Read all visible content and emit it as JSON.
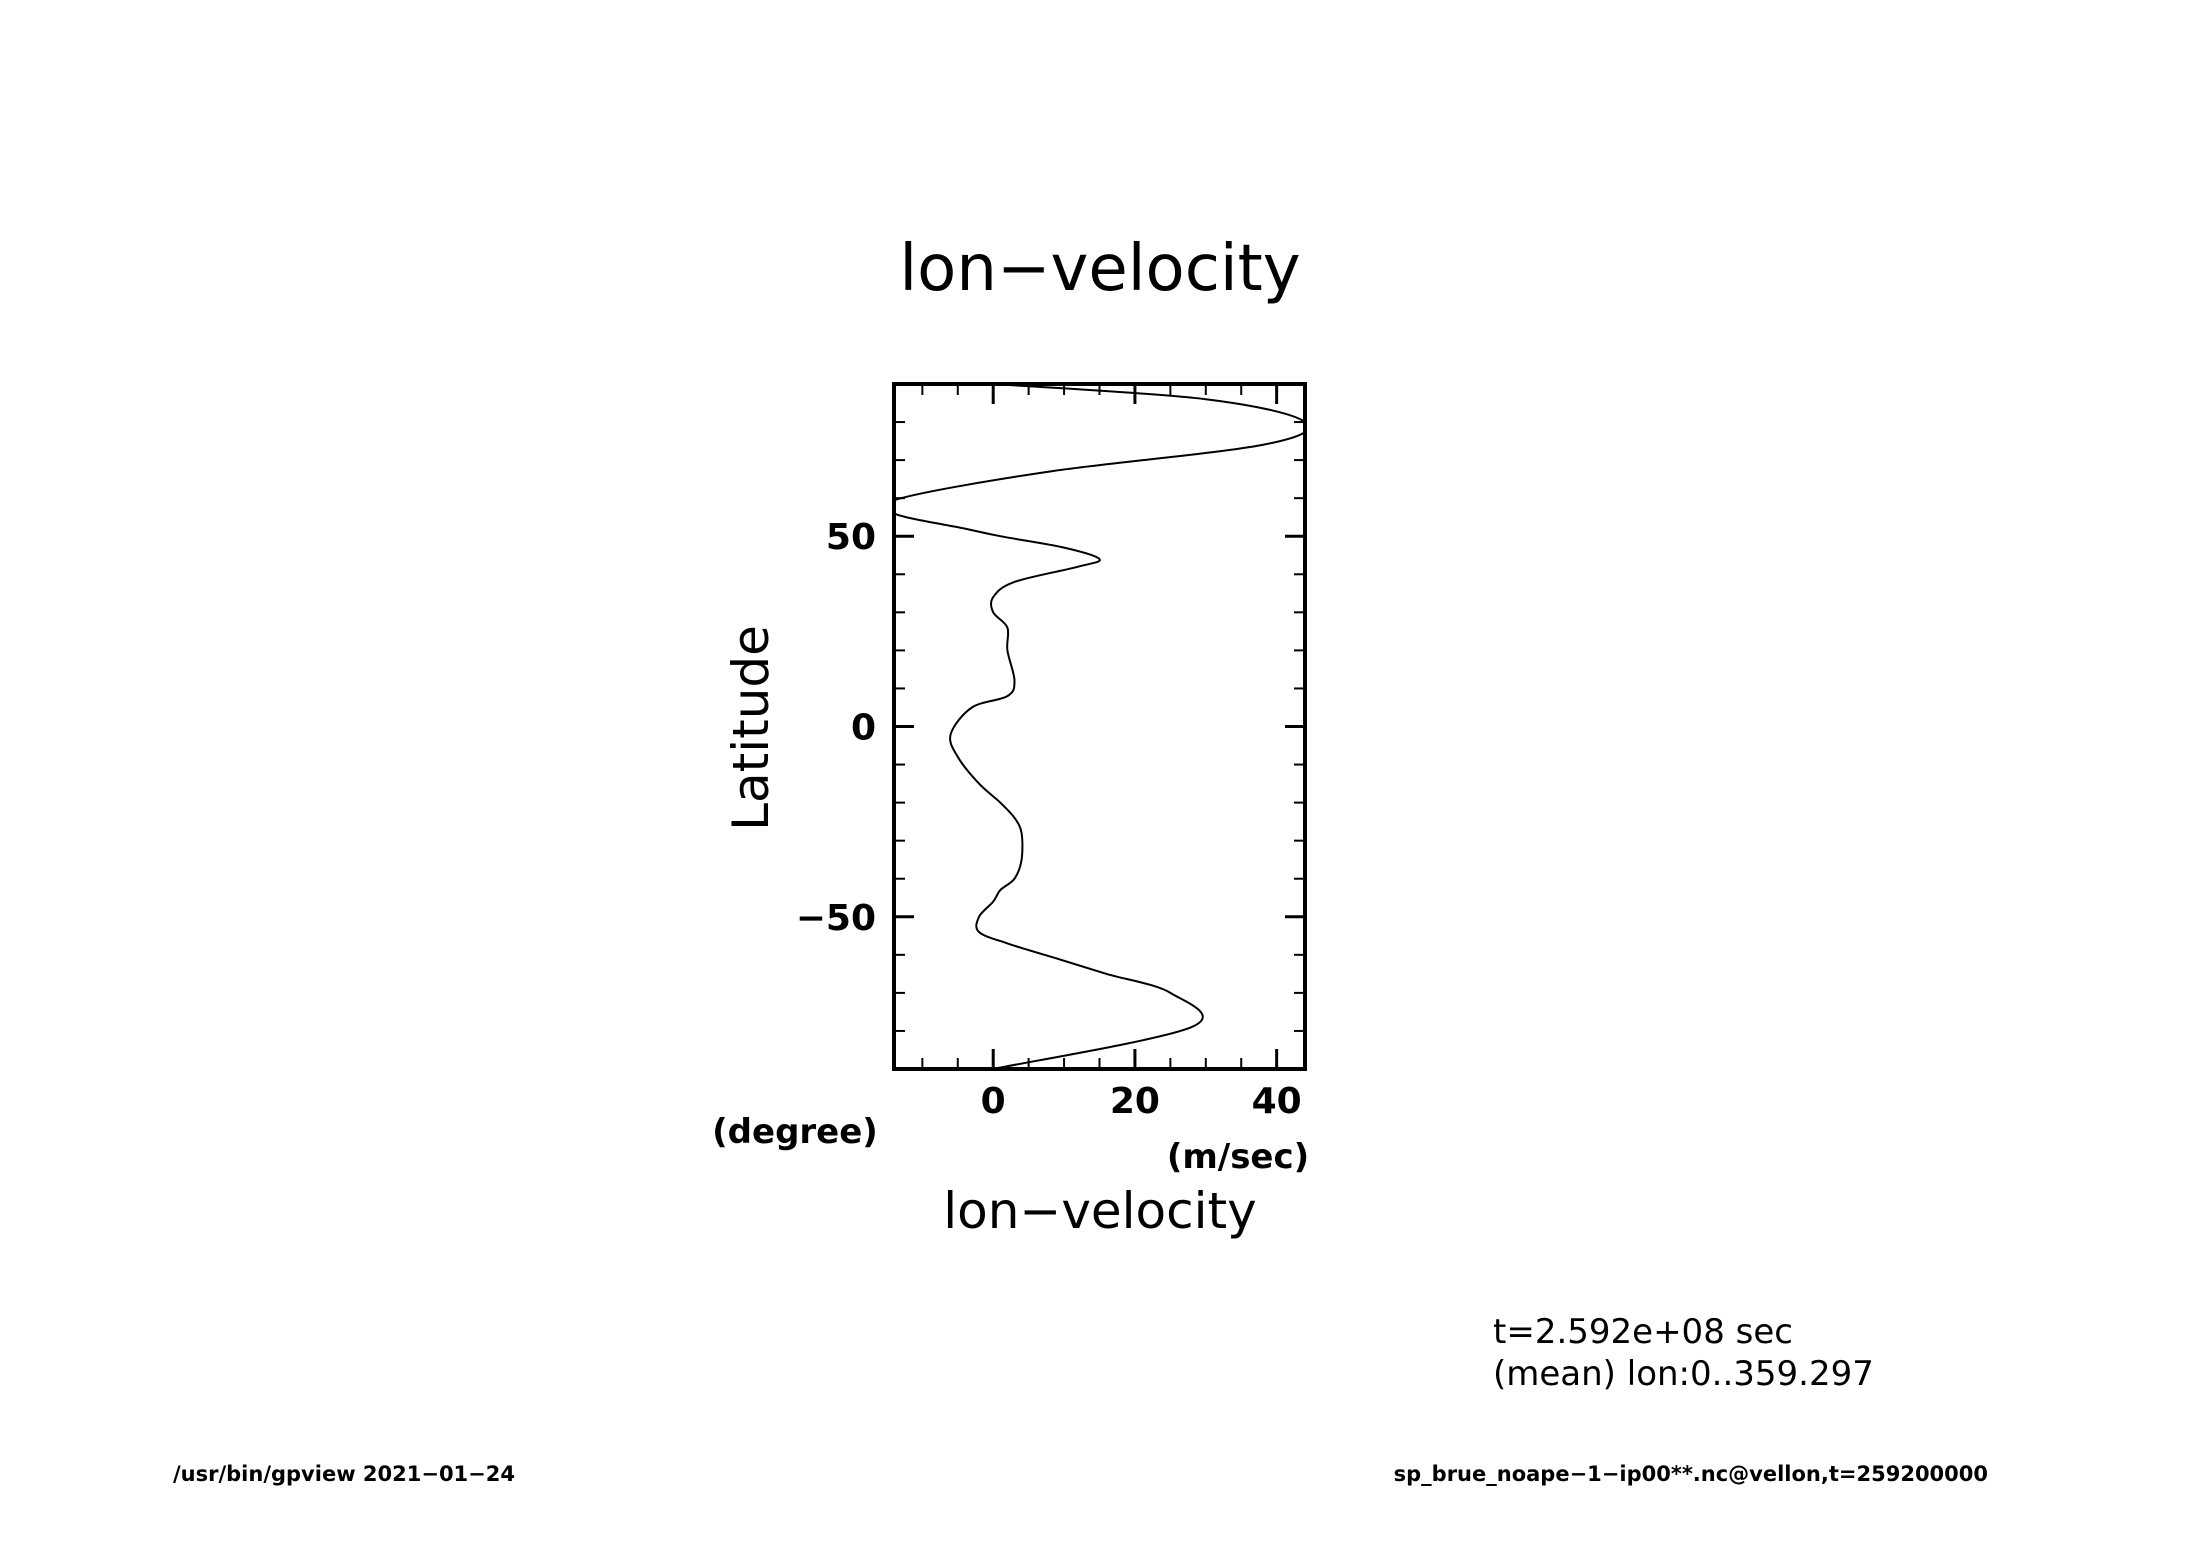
{
  "title": "lon−velocity",
  "chart_data": {
    "type": "line",
    "title": "lon−velocity",
    "xlabel": "lon−velocity",
    "xunit": "(m/sec)",
    "ylabel": "Latitude",
    "yunit": "(degree)",
    "xlim": [
      -14,
      44
    ],
    "ylim": [
      -90,
      90
    ],
    "xticks": [
      0,
      20,
      40
    ],
    "xtick_labels": [
      "0",
      "20",
      "40"
    ],
    "yticks": [
      -50,
      0,
      50
    ],
    "ytick_labels": [
      "−50",
      "0",
      "50"
    ],
    "grid": false,
    "legend": "none",
    "series": [
      {
        "x": [
          0,
          28,
          25,
          16,
          9,
          2,
          -2,
          -2,
          0,
          1,
          3,
          4,
          4,
          3,
          1,
          -2,
          -5,
          -6,
          -3,
          2,
          3,
          2,
          2,
          0,
          0,
          3,
          12,
          15,
          10,
          1,
          -4,
          -14,
          -13,
          8,
          38,
          44,
          30,
          0
        ],
        "y": [
          -90,
          -79,
          -70,
          -65,
          -61,
          -57,
          -54,
          -50,
          -46,
          -43,
          -40,
          -35,
          -28,
          -24,
          -20,
          -15,
          -8,
          -2,
          5,
          8,
          12,
          20,
          26,
          30,
          34,
          38,
          42,
          44,
          47,
          50,
          52,
          56,
          60,
          67,
          74,
          80,
          86,
          90
        ]
      }
    ]
  },
  "info": {
    "line1": "t=2.592e+08 sec",
    "line2": "(mean) lon:0..359.297"
  },
  "footer": {
    "left": "/usr/bin/gpview   2021−01−24",
    "right": "sp_brue_noape−1−ip00**.nc@vellon,t=259200000"
  }
}
